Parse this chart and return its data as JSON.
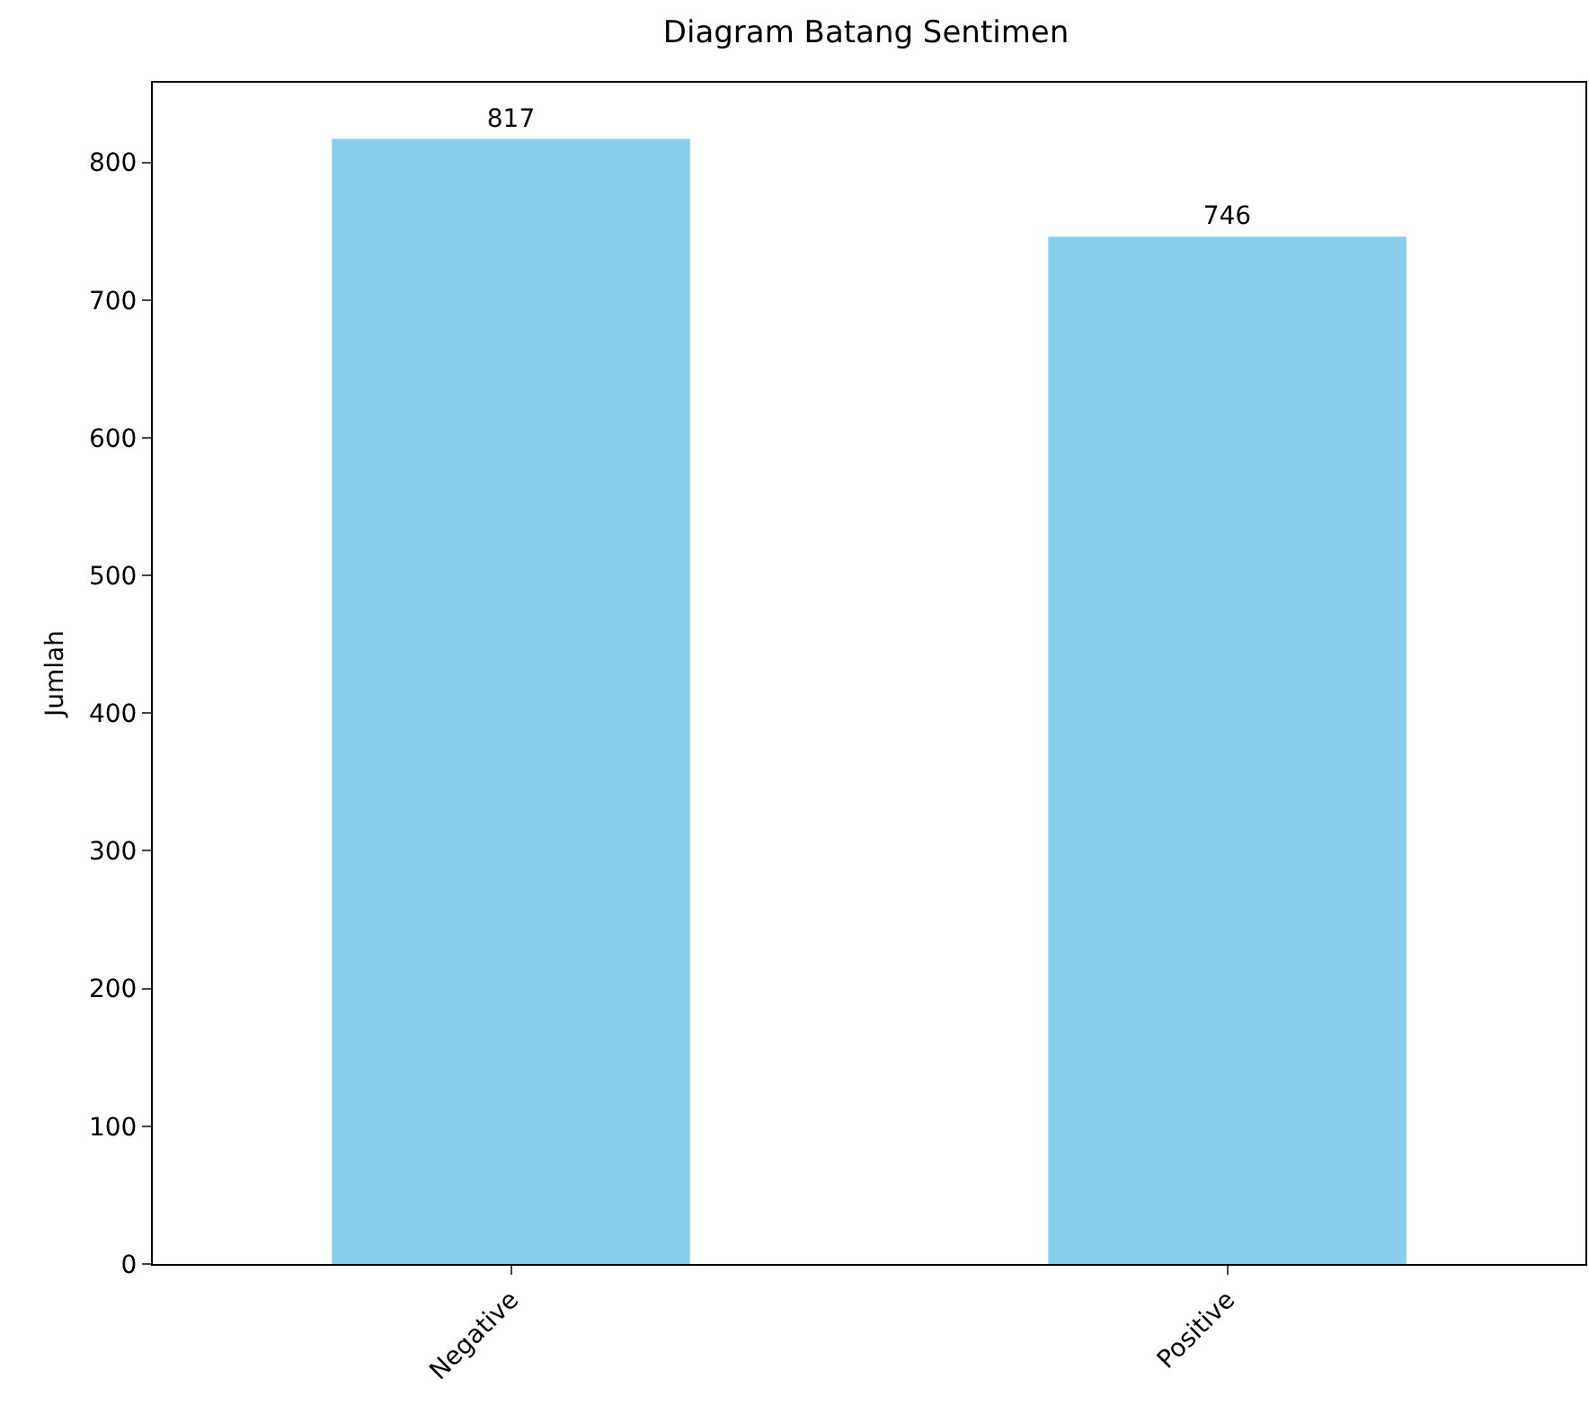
{
  "chart_data": {
    "type": "bar",
    "title": "Diagram Batang Sentimen",
    "ylabel": "Jumlah",
    "categories": [
      "Negative",
      "Positive"
    ],
    "values": [
      817,
      746
    ],
    "color": "#87ceeb",
    "ylim": [
      0,
      857.85
    ],
    "yticks": [
      0,
      100,
      200,
      300,
      400,
      500,
      600,
      700,
      800
    ],
    "grid": false,
    "data_labels": true
  }
}
